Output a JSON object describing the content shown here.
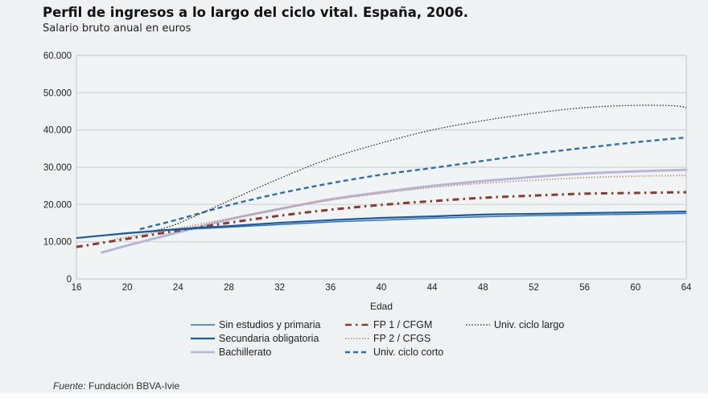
{
  "header": {
    "title": "Perfil de ingresos a lo largo del ciclo vital. España, 2006.",
    "subtitle": "Salario bruto anual en euros"
  },
  "footer": {
    "source_label": "Fuente:",
    "source_text": " Fundación BBVA-Ivie"
  },
  "chart_data": {
    "type": "line",
    "title": "Perfil de ingresos a lo largo del ciclo vital. España, 2006.",
    "subtitle": "Salario bruto anual en euros",
    "xlabel": "Edad",
    "ylabel": "",
    "xlim": [
      16,
      64
    ],
    "ylim": [
      0,
      60000
    ],
    "x_ticks": [
      16,
      20,
      24,
      28,
      32,
      36,
      40,
      44,
      48,
      52,
      56,
      60,
      64
    ],
    "y_ticks": [
      0,
      10000,
      20000,
      30000,
      40000,
      50000,
      60000
    ],
    "y_tick_labels": [
      "0",
      "10.000",
      "20.000",
      "30.000",
      "40.000",
      "50.000",
      "60.000"
    ],
    "grid": "horizontal",
    "legend_position": "bottom",
    "series": [
      {
        "name": "Sin estudios y primaria",
        "color": "#2a6ebb",
        "style": "solid-thin",
        "x": [
          16,
          20,
          24,
          28,
          32,
          36,
          40,
          44,
          48,
          52,
          56,
          60,
          64
        ],
        "values": [
          11000,
          12200,
          13200,
          13900,
          14600,
          15300,
          15800,
          16300,
          16700,
          17000,
          17200,
          17400,
          17600
        ]
      },
      {
        "name": "Secundaria obligatoria",
        "color": "#1c5a9c",
        "style": "solid-thick",
        "x": [
          16,
          20,
          24,
          28,
          32,
          36,
          40,
          44,
          48,
          52,
          56,
          60,
          64
        ],
        "values": [
          11000,
          12300,
          13400,
          14200,
          15100,
          15800,
          16400,
          16800,
          17300,
          17500,
          17700,
          17900,
          18100
        ]
      },
      {
        "name": "Bachillerato",
        "color": "#b8b6d6",
        "style": "solid-wide",
        "x": [
          18,
          20,
          24,
          28,
          32,
          36,
          40,
          44,
          48,
          52,
          56,
          60,
          64
        ],
        "values": [
          7100,
          9000,
          12500,
          16000,
          18800,
          21400,
          23300,
          25000,
          26300,
          27400,
          28300,
          28900,
          29300
        ]
      },
      {
        "name": "FP 1 / CFGM",
        "color": "#8b3a2e",
        "style": "dash-dot",
        "x": [
          16,
          20,
          24,
          28,
          32,
          36,
          40,
          44,
          48,
          52,
          56,
          60,
          64
        ],
        "values": [
          8600,
          10800,
          13000,
          15100,
          17000,
          18600,
          19900,
          20900,
          21800,
          22400,
          22900,
          23100,
          23300
        ]
      },
      {
        "name": "FP 2 / CFGS",
        "color": "#c9908a",
        "style": "dotted",
        "x": [
          19,
          20,
          24,
          28,
          32,
          36,
          40,
          44,
          48,
          52,
          56,
          60,
          64
        ],
        "values": [
          10600,
          11300,
          13600,
          16200,
          18800,
          21200,
          23000,
          24600,
          25700,
          26500,
          27200,
          27600,
          27800
        ]
      },
      {
        "name": "Univ. ciclo corto",
        "color": "#2e6fb0",
        "style": "dashed",
        "x": [
          21,
          24,
          28,
          32,
          36,
          40,
          44,
          48,
          52,
          56,
          60,
          64
        ],
        "values": [
          13400,
          16000,
          19800,
          23000,
          25700,
          28000,
          29800,
          31700,
          33600,
          35200,
          36700,
          38000
        ]
      },
      {
        "name": "Univ. ciclo largo",
        "color": "#333333",
        "style": "dotted-fine",
        "x": [
          22,
          24,
          28,
          32,
          36,
          40,
          44,
          48,
          52,
          56,
          60,
          63,
          64
        ],
        "values": [
          12800,
          14900,
          21000,
          27000,
          32400,
          36500,
          40000,
          42500,
          44500,
          46000,
          46600,
          46500,
          46000
        ]
      }
    ]
  }
}
